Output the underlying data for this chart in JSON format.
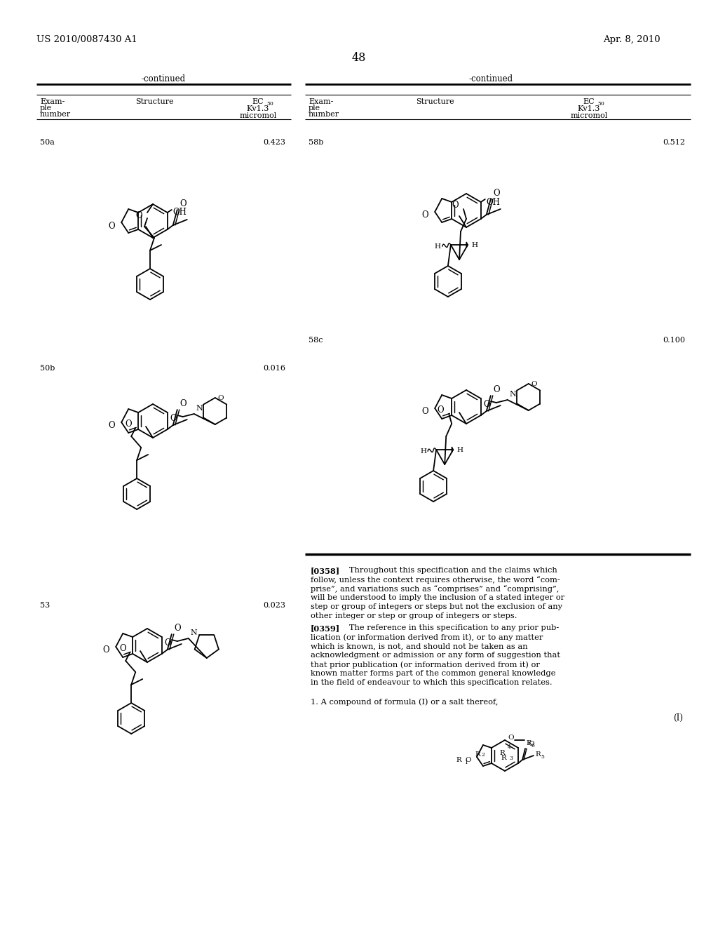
{
  "page_number": "48",
  "patent_number": "US 2010/0087430 A1",
  "patent_date": "Apr. 8, 2010",
  "background_color": "#ffffff",
  "left_table_header": "-continued",
  "right_table_header": "-continued",
  "entries_left": [
    {
      "id": "50a",
      "ec50": "0.423"
    },
    {
      "id": "50b",
      "ec50": "0.016"
    },
    {
      "id": "53",
      "ec50": "0.023"
    }
  ],
  "entries_right": [
    {
      "id": "58b",
      "ec50": "0.512"
    },
    {
      "id": "58c",
      "ec50": "0.100"
    }
  ],
  "para_358_bold": "[0358]",
  "para_358": "  Throughout this specification and the claims which follow, unless the context requires otherwise, the word “com-prise”, and variations such as “comprises” and “comprising”, will be understood to imply the inclusion of a stated integer or step or group of integers or steps but not the exclusion of any other integer or step or group of integers or steps.",
  "para_359_bold": "[0359]",
  "para_359": "  The reference in this specification to any prior pub-lication (or information derived from it), or to any matter which is known, is not, and should not be taken as an acknowledgment or admission or any form of suggestion that that prior publication (or information derived from it) or known matter forms part of the common general knowledge in the field of endeavour to which this specification relates.",
  "claim_1": "1. A compound of formula (I) or a salt thereof,",
  "formula_label": "(I)"
}
